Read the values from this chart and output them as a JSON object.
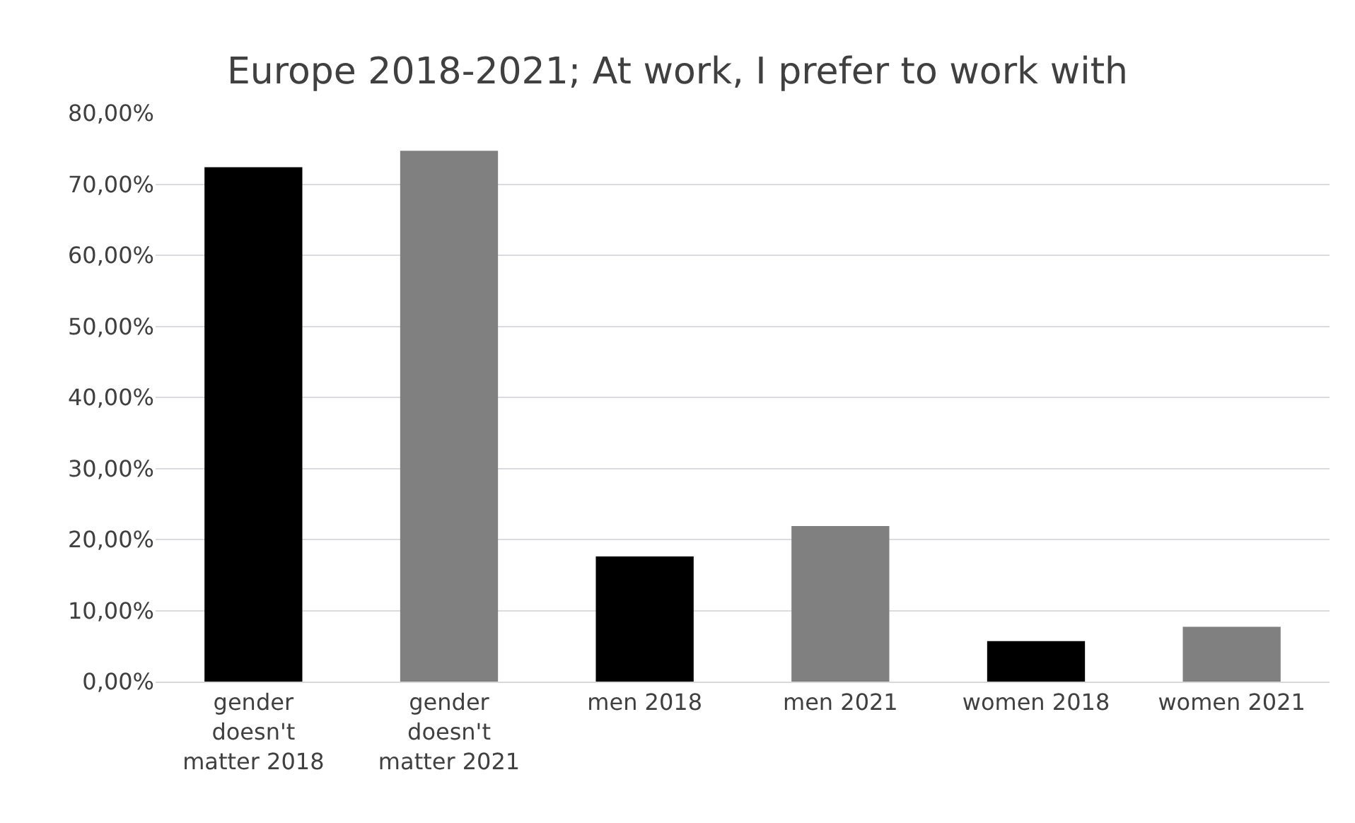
{
  "chart_data": {
    "type": "bar",
    "title": "Europe 2018-2021; At work, I prefer to work with",
    "categories": [
      "gender doesn't matter 2018",
      "gender doesn't matter 2021",
      "men 2018",
      "men 2021",
      "women 2018",
      "women 2021"
    ],
    "values": [
      72.4,
      74.7,
      17.6,
      21.9,
      5.7,
      7.7
    ],
    "colors": [
      "#000000",
      "#808080",
      "#000000",
      "#808080",
      "#000000",
      "#808080"
    ],
    "ylim": [
      0,
      80
    ],
    "yticks": [
      {
        "value": 0,
        "label": "0,00%"
      },
      {
        "value": 10,
        "label": "10,00%"
      },
      {
        "value": 20,
        "label": "20,00%"
      },
      {
        "value": 30,
        "label": "30,00%"
      },
      {
        "value": 40,
        "label": "40,00%"
      },
      {
        "value": 50,
        "label": "50,00%"
      },
      {
        "value": 60,
        "label": "60,00%"
      },
      {
        "value": 70,
        "label": "70,00%"
      },
      {
        "value": 80,
        "label": "80,00%"
      }
    ],
    "grid": "y"
  }
}
